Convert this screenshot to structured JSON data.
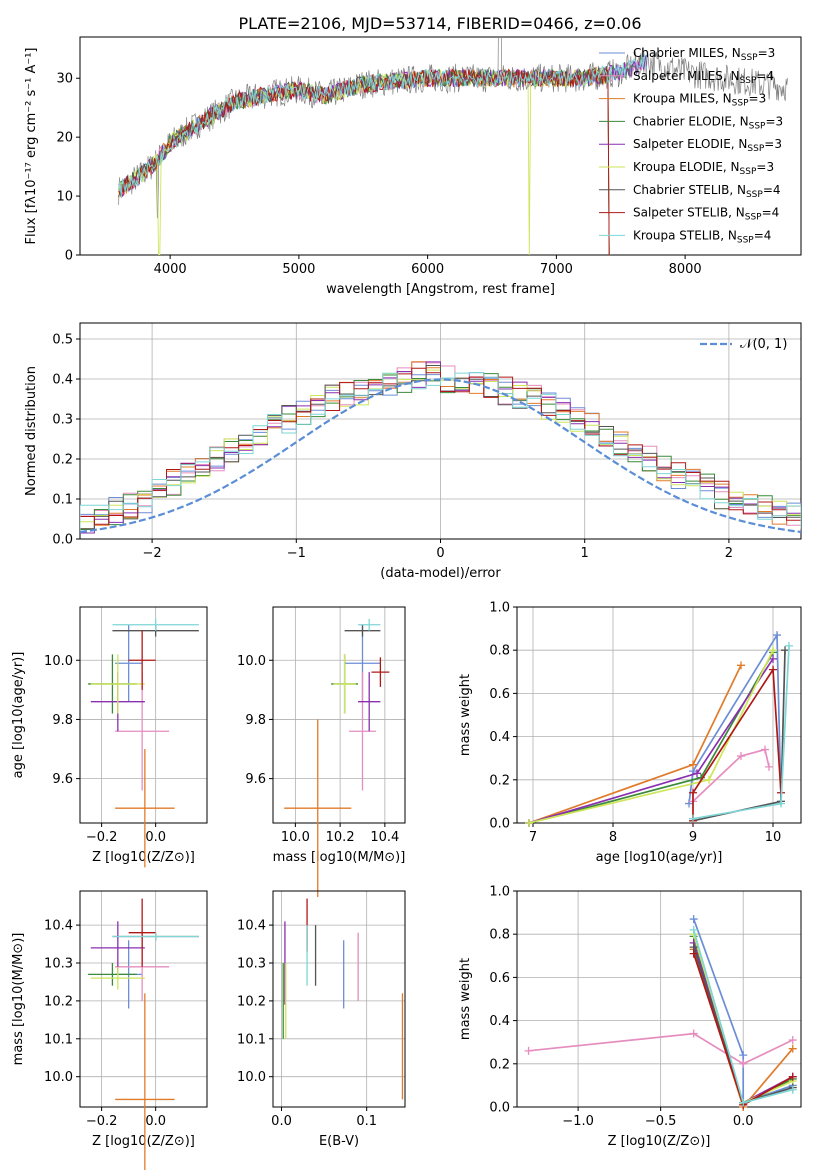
{
  "figure_title": "PLATE=2106, MJD=53714, FIBERID=0466, z=0.06",
  "colors": {
    "chabrier_miles": "#6b8ed6",
    "salpeter_miles": "#e68dbf",
    "kroupa_miles": "#e07b2a",
    "chabrier_elodie": "#3a8a3a",
    "salpeter_elodie": "#8a2fb0",
    "kroupa_elodie": "#cde65a",
    "chabrier_stelib": "#555555",
    "salpeter_stelib": "#b01818",
    "kroupa_stelib": "#7fd6d6",
    "data": "#808080",
    "normal": "#5b8ed6",
    "grid": "#b0b0b0"
  },
  "chart_data": [
    {
      "type": "line",
      "id": "spectrum",
      "xlabel": "wavelength [Angstrom, rest frame]",
      "ylabel": "Flux [fλ10⁻¹⁷ erg cm⁻² s⁻¹ A⁻¹]",
      "xlim": [
        3300,
        8900
      ],
      "ylim": [
        0,
        37
      ],
      "xticks": [
        "4000",
        "5000",
        "6000",
        "7000",
        "8000"
      ],
      "yticks": [
        "0",
        "10",
        "20",
        "30"
      ],
      "continuum": [
        [
          3600,
          11
        ],
        [
          3800,
          14
        ],
        [
          3900,
          16
        ],
        [
          4000,
          19
        ],
        [
          4200,
          22
        ],
        [
          4500,
          26
        ],
        [
          4800,
          27.5
        ],
        [
          5000,
          28
        ],
        [
          5200,
          27
        ],
        [
          5500,
          29
        ],
        [
          6000,
          30
        ],
        [
          6500,
          30
        ],
        [
          7000,
          30
        ],
        [
          7200,
          30
        ],
        [
          7500,
          31
        ],
        [
          7700,
          33
        ],
        [
          8000,
          31
        ],
        [
          8300,
          30
        ],
        [
          8600,
          29
        ],
        [
          8800,
          28.5
        ]
      ],
      "legend": [
        {
          "label": "Chabrier MILES, N",
          "sub": "SSP",
          "suffix": "=3",
          "color": "chabrier_miles"
        },
        {
          "label": "Salpeter MILES, N",
          "sub": "SSP",
          "suffix": "=4",
          "color": "salpeter_miles"
        },
        {
          "label": "Kroupa MILES, N",
          "sub": "SSP",
          "suffix": "=3",
          "color": "kroupa_miles"
        },
        {
          "label": "Chabrier ELODIE, N",
          "sub": "SSP",
          "suffix": "=3",
          "color": "chabrier_elodie"
        },
        {
          "label": "Salpeter ELODIE, N",
          "sub": "SSP",
          "suffix": "=3",
          "color": "salpeter_elodie"
        },
        {
          "label": "Kroupa ELODIE, N",
          "sub": "SSP",
          "suffix": "=3",
          "color": "kroupa_elodie"
        },
        {
          "label": "Chabrier STELIB, N",
          "sub": "SSP",
          "suffix": "=4",
          "color": "chabrier_stelib"
        },
        {
          "label": "Salpeter STELIB, N",
          "sub": "SSP",
          "suffix": "=4",
          "color": "salpeter_stelib"
        },
        {
          "label": "Kroupa STELIB, N",
          "sub": "SSP",
          "suffix": "=4",
          "color": "kroupa_stelib"
        }
      ]
    },
    {
      "type": "histogram",
      "id": "residuals",
      "xlabel": "(data-model)/error",
      "ylabel": "Normed distribution",
      "xlim": [
        -2.5,
        2.5
      ],
      "ylim": [
        0,
        0.54
      ],
      "xticks": [
        "−2",
        "−1",
        "0",
        "1",
        "2"
      ],
      "yticks": [
        "0.0",
        "0.1",
        "0.2",
        "0.3",
        "0.4",
        "0.5"
      ],
      "legend": "𝒩(0, 1)",
      "bin_width": 0.1,
      "profile": [
        0.02,
        0.025,
        0.03,
        0.035,
        0.04,
        0.05,
        0.06,
        0.07,
        0.08,
        0.1,
        0.12,
        0.14,
        0.16,
        0.18,
        0.2,
        0.22,
        0.24,
        0.26,
        0.28,
        0.3,
        0.32,
        0.34,
        0.35,
        0.36,
        0.37,
        0.38,
        0.39,
        0.4,
        0.41,
        0.41,
        0.4,
        0.4,
        0.39,
        0.38,
        0.37,
        0.36,
        0.35,
        0.33,
        0.32,
        0.3,
        0.28,
        0.26,
        0.24,
        0.22,
        0.2,
        0.18,
        0.16,
        0.14,
        0.13,
        0.11,
        0.1,
        0.09,
        0.08,
        0.07,
        0.06,
        0.05,
        0.04,
        0.035,
        0.03,
        0.025
      ]
    },
    {
      "type": "errorbar",
      "id": "age_vs_Z",
      "xlabel": "Z [log10(Z/Z⊙)]",
      "ylabel": "age [log10(age/yr)]",
      "xlim": [
        -0.28,
        0.19
      ],
      "ylim": [
        9.45,
        10.18
      ],
      "xticks": [
        [
          "-0.2",
          "−0.2"
        ],
        [
          "0",
          "0.0"
        ]
      ],
      "yticks": [
        [
          "9.6",
          "9.6"
        ],
        [
          "9.8",
          "9.8"
        ],
        [
          "10",
          "10.0"
        ]
      ],
      "points": [
        {
          "m": "chabrier_miles",
          "x": -0.1,
          "xe": 0.05,
          "y": 9.99,
          "ye": 0.13
        },
        {
          "m": "salpeter_miles",
          "x": -0.05,
          "xe": 0.1,
          "y": 9.76,
          "ye": 0.2
        },
        {
          "m": "kroupa_miles",
          "x": -0.04,
          "xe": 0.11,
          "y": 9.5,
          "ye": 0.2
        },
        {
          "m": "chabrier_elodie",
          "x": -0.16,
          "xe": 0.09,
          "y": 9.92,
          "ye": 0.1
        },
        {
          "m": "salpeter_elodie",
          "x": -0.14,
          "xe": 0.1,
          "y": 9.86,
          "ye": 0.1
        },
        {
          "m": "kroupa_elodie",
          "x": -0.14,
          "xe": 0.1,
          "y": 9.92,
          "ye": 0.1
        },
        {
          "m": "chabrier_stelib",
          "x": 0,
          "xe": 0.16,
          "y": 10.1,
          "ye": 0.02
        },
        {
          "m": "salpeter_stelib",
          "x": -0.05,
          "xe": 0.05,
          "y": 10.0,
          "ye": 0.1
        },
        {
          "m": "kroupa_stelib",
          "x": 0,
          "xe": 0.16,
          "y": 10.12,
          "ye": 0.02
        }
      ]
    },
    {
      "type": "errorbar",
      "id": "age_vs_mass",
      "xlabel": "mass [log10(M/M⊙)]",
      "ylabel": "",
      "xlim": [
        9.9,
        10.49
      ],
      "ylim": [
        9.45,
        10.18
      ],
      "xticks": [
        [
          "10",
          "10.0"
        ],
        [
          "10.2",
          "10.2"
        ],
        [
          "10.4",
          "10.4"
        ]
      ],
      "yticks": [
        [
          "9.6",
          "9.6"
        ],
        [
          "9.8",
          "9.8"
        ],
        [
          "10",
          "10.0"
        ]
      ],
      "points": [
        {
          "m": "chabrier_miles",
          "x": 10.3,
          "xe": 0.08,
          "y": 9.99,
          "ye": 0.13
        },
        {
          "m": "salpeter_miles",
          "x": 10.3,
          "xe": 0.06,
          "y": 9.76,
          "ye": 0.2
        },
        {
          "m": "kroupa_miles",
          "x": 10.1,
          "xe": 0.15,
          "y": 9.5,
          "ye": 0.3
        },
        {
          "m": "chabrier_elodie",
          "x": 10.22,
          "xe": 0.06,
          "y": 9.92,
          "ye": 0.1
        },
        {
          "m": "salpeter_elodie",
          "x": 10.33,
          "xe": 0.05,
          "y": 9.86,
          "ye": 0.1
        },
        {
          "m": "kroupa_elodie",
          "x": 10.22,
          "xe": 0.05,
          "y": 9.92,
          "ye": 0.1
        },
        {
          "m": "chabrier_stelib",
          "x": 10.3,
          "xe": 0.08,
          "y": 10.1,
          "ye": 0.02
        },
        {
          "m": "salpeter_stelib",
          "x": 10.38,
          "xe": 0.04,
          "y": 9.96,
          "ye": 0.05
        },
        {
          "m": "kroupa_stelib",
          "x": 10.33,
          "xe": 0.05,
          "y": 10.12,
          "ye": 0.02
        }
      ]
    },
    {
      "type": "line",
      "id": "weight_vs_age",
      "xlabel": "age [log10(age/yr)]",
      "ylabel": "mass weight",
      "xlim": [
        6.8,
        10.35
      ],
      "ylim": [
        0,
        1
      ],
      "xticks": [
        [
          "7",
          "7"
        ],
        [
          "8",
          "8"
        ],
        [
          "9",
          "9"
        ],
        [
          "10",
          "10"
        ]
      ],
      "yticks": [
        [
          "0",
          "0.0"
        ],
        [
          "0.2",
          "0.2"
        ],
        [
          "0.4",
          "0.4"
        ],
        [
          "0.6",
          "0.6"
        ],
        [
          "0.8",
          "0.8"
        ],
        [
          "1",
          "1.0"
        ]
      ],
      "series": [
        {
          "m": "chabrier_miles",
          "x": [
            8.95,
            9.0,
            10.05,
            10.1
          ],
          "y": [
            0.09,
            0.24,
            0.87,
            0.1
          ]
        },
        {
          "m": "salpeter_miles",
          "x": [
            9.0,
            9.6,
            9.9,
            9.95
          ],
          "y": [
            0.1,
            0.31,
            0.34,
            0.26
          ]
        },
        {
          "m": "kroupa_miles",
          "x": [
            6.95,
            9.0,
            9.6
          ],
          "y": [
            0.0,
            0.27,
            0.73
          ]
        },
        {
          "m": "chabrier_elodie",
          "x": [
            6.95,
            9.1,
            10.0
          ],
          "y": [
            0.0,
            0.21,
            0.79
          ]
        },
        {
          "m": "salpeter_elodie",
          "x": [
            6.95,
            9.05,
            10.0
          ],
          "y": [
            0.0,
            0.23,
            0.76
          ]
        },
        {
          "m": "kroupa_elodie",
          "x": [
            6.95,
            9.2,
            10.0
          ],
          "y": [
            0.0,
            0.2,
            0.8
          ]
        },
        {
          "m": "chabrier_stelib",
          "x": [
            9.0,
            10.1,
            10.15
          ],
          "y": [
            0.01,
            0.1,
            0.8
          ]
        },
        {
          "m": "salpeter_stelib",
          "x": [
            9.0,
            9.0,
            10.0,
            10.1
          ],
          "y": [
            0.01,
            0.14,
            0.71,
            0.14
          ]
        },
        {
          "m": "kroupa_stelib",
          "x": [
            9.0,
            10.1,
            10.2
          ],
          "y": [
            0.02,
            0.09,
            0.82
          ]
        }
      ]
    },
    {
      "type": "errorbar",
      "id": "mass_vs_Z",
      "xlabel": "Z [log10(Z/Z⊙)]",
      "ylabel": "mass [log10(M/M⊙)]",
      "xlim": [
        -0.28,
        0.19
      ],
      "ylim": [
        9.92,
        10.49
      ],
      "xticks": [
        [
          "-0.2",
          "−0.2"
        ],
        [
          "0",
          "0.0"
        ]
      ],
      "yticks": [
        [
          "10",
          "10.0"
        ],
        [
          "10.1",
          "10.1"
        ],
        [
          "10.2",
          "10.2"
        ],
        [
          "10.3",
          "10.3"
        ],
        [
          "10.4",
          "10.4"
        ]
      ],
      "points": [
        {
          "m": "chabrier_miles",
          "x": -0.1,
          "xe": 0.05,
          "y": 10.27,
          "ye": 0.09
        },
        {
          "m": "salpeter_miles",
          "x": -0.05,
          "xe": 0.1,
          "y": 10.29,
          "ye": 0.09
        },
        {
          "m": "kroupa_miles",
          "x": -0.04,
          "xe": 0.11,
          "y": 9.94,
          "ye": 0.28
        },
        {
          "m": "chabrier_elodie",
          "x": -0.16,
          "xe": 0.09,
          "y": 10.27,
          "ye": 0.03
        },
        {
          "m": "salpeter_elodie",
          "x": -0.14,
          "xe": 0.1,
          "y": 10.34,
          "ye": 0.07
        },
        {
          "m": "kroupa_elodie",
          "x": -0.14,
          "xe": 0.1,
          "y": 10.26,
          "ye": 0.03
        },
        {
          "m": "chabrier_stelib",
          "x": 0,
          "xe": 0.16,
          "y": 10.37,
          "ye": 0.01
        },
        {
          "m": "salpeter_stelib",
          "x": -0.05,
          "xe": 0.05,
          "y": 10.38,
          "ye": 0.09
        },
        {
          "m": "kroupa_stelib",
          "x": 0,
          "xe": 0.16,
          "y": 10.37,
          "ye": 0.01
        }
      ]
    },
    {
      "type": "errorbar",
      "id": "mass_vs_ebv",
      "xlabel": "E(B-V)",
      "ylabel": "",
      "xlim": [
        -0.01,
        0.145
      ],
      "ylim": [
        9.92,
        10.49
      ],
      "xticks": [
        [
          "0",
          "0.0"
        ],
        [
          "0.1",
          "0.1"
        ]
      ],
      "yticks": [
        [
          "10",
          "10.0"
        ],
        [
          "10.1",
          "10.1"
        ],
        [
          "10.2",
          "10.2"
        ],
        [
          "10.3",
          "10.3"
        ],
        [
          "10.4",
          "10.4"
        ]
      ],
      "points": [
        {
          "m": "chabrier_miles",
          "x": 0.073,
          "xe": 0,
          "y": 10.27,
          "ye": 0.09
        },
        {
          "m": "salpeter_miles",
          "x": 0.09,
          "xe": 0,
          "y": 10.29,
          "ye": 0.09
        },
        {
          "m": "kroupa_miles",
          "x": 0.142,
          "xe": 0,
          "y": 10.08,
          "ye": 0.14
        },
        {
          "m": "chabrier_elodie",
          "x": 0.002,
          "xe": 0,
          "y": 10.2,
          "ye": 0.1
        },
        {
          "m": "salpeter_elodie",
          "x": 0.004,
          "xe": 0,
          "y": 10.3,
          "ye": 0.11
        },
        {
          "m": "kroupa_elodie",
          "x": 0.005,
          "xe": 0,
          "y": 10.2,
          "ye": 0.1
        },
        {
          "m": "chabrier_stelib",
          "x": 0.04,
          "xe": 0,
          "y": 10.32,
          "ye": 0.08
        },
        {
          "m": "salpeter_stelib",
          "x": 0.03,
          "xe": 0,
          "y": 10.4,
          "ye": 0.07
        },
        {
          "m": "kroupa_stelib",
          "x": 0.03,
          "xe": 0,
          "y": 10.32,
          "ye": 0.08
        }
      ]
    },
    {
      "type": "line",
      "id": "weight_vs_Z",
      "xlabel": "Z [log10(Z/Z⊙)]",
      "ylabel": "mass weight",
      "xlim": [
        -1.37,
        0.35
      ],
      "ylim": [
        0,
        1
      ],
      "xticks": [
        [
          "-1",
          "−1.0"
        ],
        [
          "-0.5",
          "−0.5"
        ],
        [
          "0",
          "0.0"
        ]
      ],
      "yticks": [
        [
          "0",
          "0.0"
        ],
        [
          "0.2",
          "0.2"
        ],
        [
          "0.4",
          "0.4"
        ],
        [
          "0.6",
          "0.6"
        ],
        [
          "0.8",
          "0.8"
        ],
        [
          "1",
          "1.0"
        ]
      ],
      "series": [
        {
          "m": "chabrier_miles",
          "x": [
            -0.3,
            0.0,
            0.0,
            0.3
          ],
          "y": [
            0.87,
            0.24,
            0.02,
            0.1
          ]
        },
        {
          "m": "salpeter_miles",
          "x": [
            -1.3,
            -0.3,
            0.0,
            0.3
          ],
          "y": [
            0.26,
            0.34,
            0.2,
            0.31
          ]
        },
        {
          "m": "kroupa_miles",
          "x": [
            -0.3,
            0.0,
            0.3
          ],
          "y": [
            0.73,
            0.0,
            0.27
          ]
        },
        {
          "m": "chabrier_elodie",
          "x": [
            -0.3,
            0.0,
            0.3
          ],
          "y": [
            0.79,
            0.01,
            0.13
          ]
        },
        {
          "m": "salpeter_elodie",
          "x": [
            -0.3,
            0.0,
            0.3
          ],
          "y": [
            0.76,
            0.02,
            0.14
          ]
        },
        {
          "m": "kroupa_elodie",
          "x": [
            -0.3,
            0.0,
            0.3
          ],
          "y": [
            0.8,
            0.02,
            0.12
          ]
        },
        {
          "m": "chabrier_stelib",
          "x": [
            -0.3,
            0.0,
            0.3
          ],
          "y": [
            0.74,
            0.02,
            0.09
          ]
        },
        {
          "m": "salpeter_stelib",
          "x": [
            -0.3,
            0.0,
            0.3
          ],
          "y": [
            0.71,
            0.01,
            0.14
          ]
        },
        {
          "m": "kroupa_stelib",
          "x": [
            -0.3,
            0.0,
            0.3
          ],
          "y": [
            0.82,
            0.02,
            0.08
          ]
        }
      ]
    }
  ]
}
